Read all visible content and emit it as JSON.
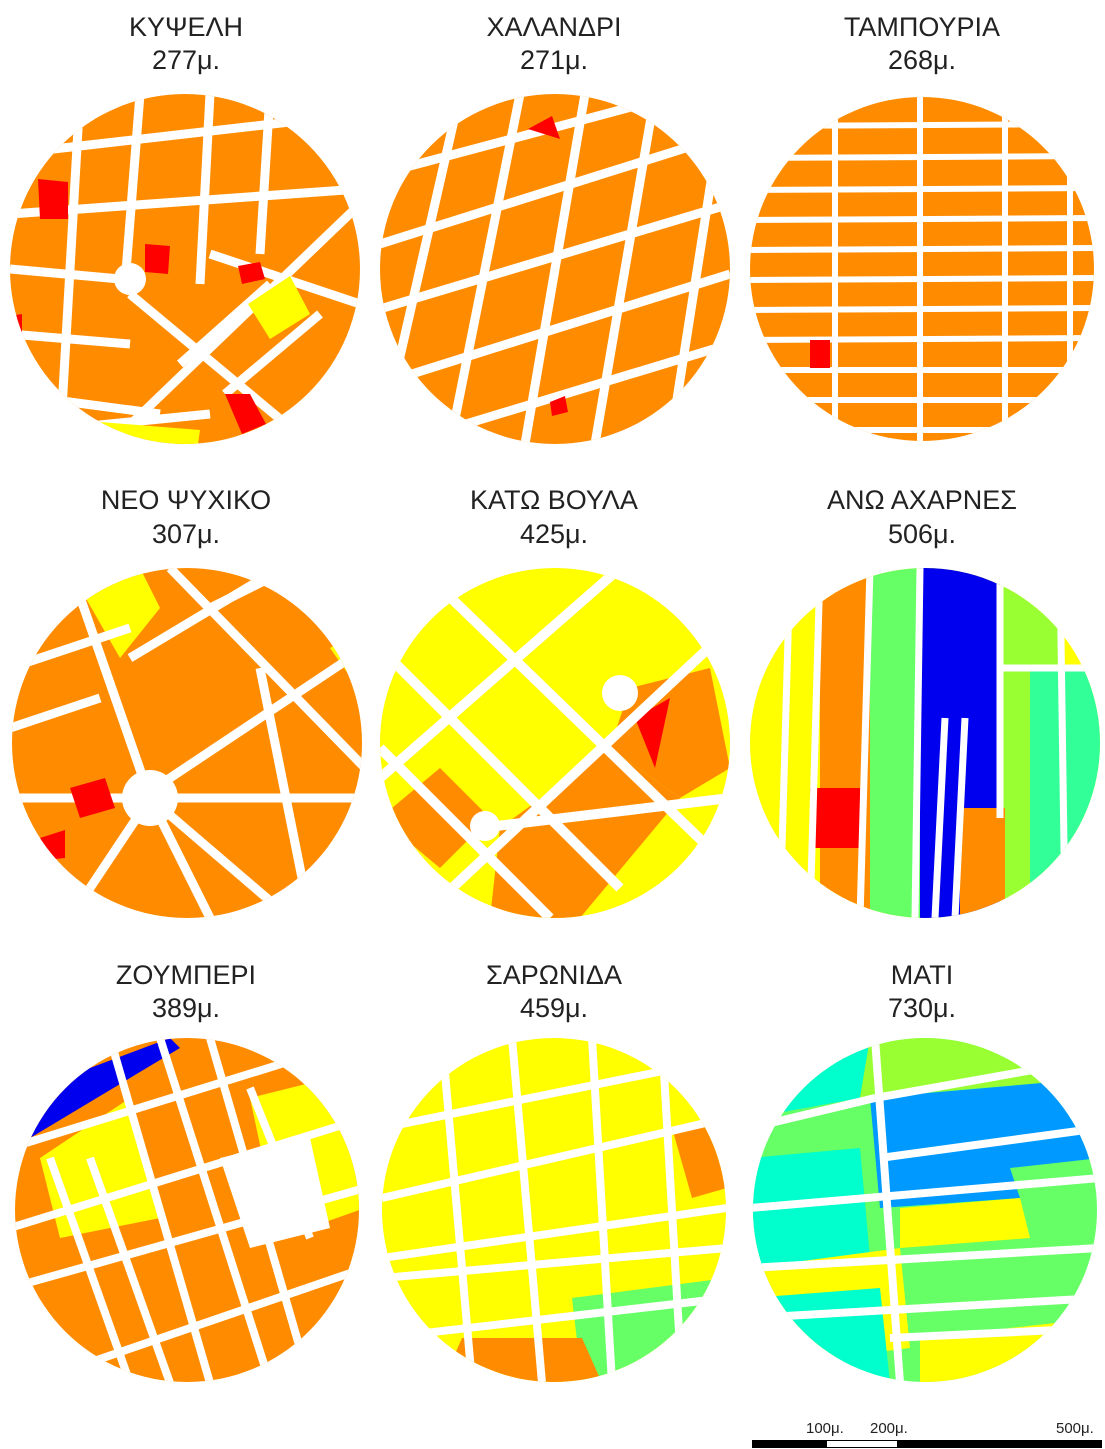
{
  "panels": [
    {
      "name": "ΚΥΨΕΛΗ",
      "distance": "277μ."
    },
    {
      "name": "ΧΑΛΑΝΔΡΙ",
      "distance": "271μ."
    },
    {
      "name": "ΤΑΜΠΟΥΡΙΑ",
      "distance": "268μ."
    },
    {
      "name": "ΝΕΟ ΨΥΧΙΚΟ",
      "distance": "307μ."
    },
    {
      "name": "ΚΑΤΩ ΒΟΥΛΑ",
      "distance": "425μ."
    },
    {
      "name": "ΑΝΩ ΑΧΑΡΝΕΣ",
      "distance": "506μ."
    },
    {
      "name": "ΖΟΥΜΠΕΡΙ",
      "distance": "389μ."
    },
    {
      "name": "ΣΑΡΩΝΙΔΑ",
      "distance": "459μ."
    },
    {
      "name": "ΜΑΤΙ",
      "distance": "730μ."
    }
  ],
  "scale_bar": {
    "labels": [
      "100μ.",
      "200μ.",
      "500μ."
    ]
  },
  "colors": {
    "red": "#ff0000",
    "orange": "#ff8c00",
    "yellow": "#ffff00",
    "yellow_green": "#99ff33",
    "light_green": "#66ff66",
    "green_cyan": "#33ff99",
    "cyan": "#00ffcc",
    "sky_blue": "#0099ff",
    "blue": "#0000ee",
    "street": "#ffffff"
  }
}
